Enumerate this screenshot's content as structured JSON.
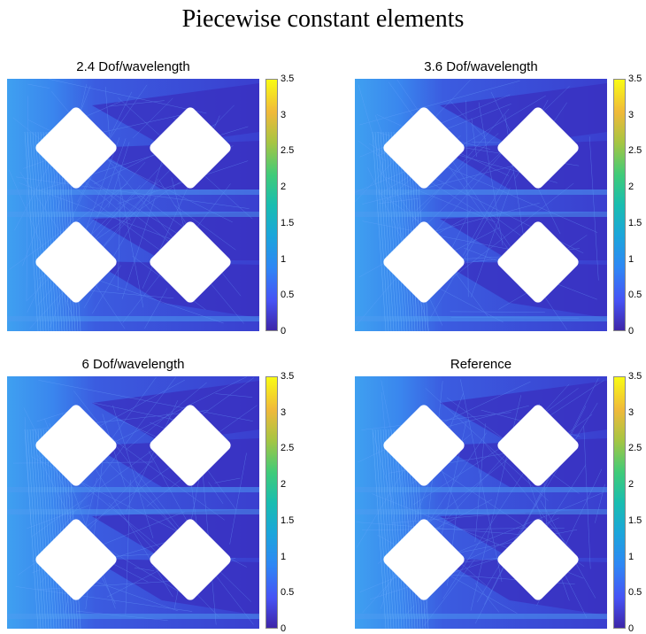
{
  "main_title": "Piecewise constant elements",
  "colorbar": {
    "ticks": [
      "3.5",
      "3",
      "2.5",
      "2",
      "1.5",
      "1",
      "0.5",
      "0"
    ],
    "min": 0,
    "max": 3.5,
    "colormap": "parula"
  },
  "panels": [
    {
      "title": "2.4 Dof/wavelength"
    },
    {
      "title": "3.6 Dof/wavelength"
    },
    {
      "title": "6 Dof/wavelength"
    },
    {
      "title": "Reference"
    }
  ],
  "colors": {
    "background_field": "#2f6fe6",
    "low_field": "#3a2fbf",
    "obstacle": "#ffffff"
  }
}
